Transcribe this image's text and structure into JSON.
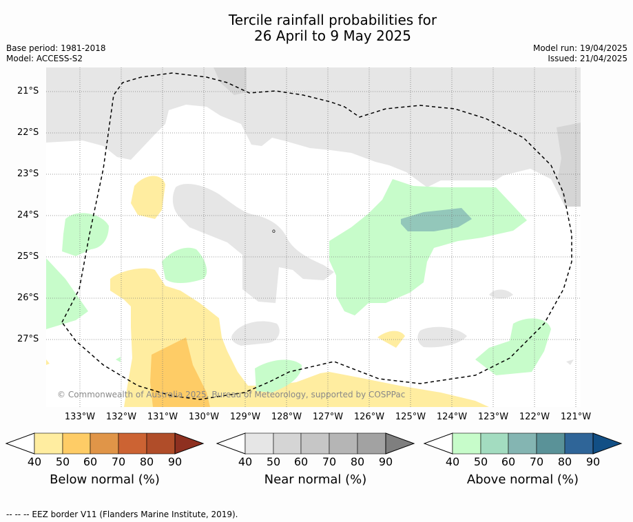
{
  "title": {
    "line1": "Tercile rainfall probabilities for",
    "line2": "26 April to 9 May 2025"
  },
  "meta": {
    "base_period": "Base period: 1981-2018",
    "model": "Model: ACCESS-S2",
    "model_run": "Model run: 19/04/2025",
    "issued": "Issued: 21/04/2025"
  },
  "map": {
    "lat_labels": [
      "21°S",
      "22°S",
      "23°S",
      "24°S",
      "25°S",
      "26°S",
      "27°S"
    ],
    "lon_labels": [
      "133°W",
      "132°W",
      "131°W",
      "130°W",
      "129°W",
      "128°W",
      "127°W",
      "126°W",
      "125°W",
      "124°W",
      "123°W",
      "122°W",
      "121°W"
    ],
    "copyright": "© Commonwealth of Australia 2025, Bureau of Meteorology, supported by COSPPac",
    "eez_label": "-- -- -- EEZ border V11 (Flanders Marine Institute, 2019).",
    "colors": {
      "below_40": "#ffeda0",
      "below_50": "#fecc66",
      "near_40": "#e6e6e6",
      "near_50": "#d5d5d5",
      "above_40": "#c7fcca",
      "above_50": "#a3dcc0",
      "above_60": "#84b5b2"
    }
  },
  "colorbars": [
    {
      "title": "Below normal (%)",
      "ticks": [
        "40",
        "50",
        "60",
        "70",
        "80",
        "90"
      ],
      "colors": [
        "#ffeda0",
        "#fecc66",
        "#e09548",
        "#cc6333",
        "#b04d29",
        "#8e3020"
      ]
    },
    {
      "title": "Near normal (%)",
      "ticks": [
        "40",
        "50",
        "60",
        "70",
        "80",
        "90"
      ],
      "colors": [
        "#e6e6e6",
        "#d5d5d5",
        "#c6c6c6",
        "#b5b5b5",
        "#a2a2a2",
        "#7f7f7f"
      ]
    },
    {
      "title": "Above normal (%)",
      "ticks": [
        "40",
        "50",
        "60",
        "70",
        "80",
        "90"
      ],
      "colors": [
        "#c7fcca",
        "#a3dcc0",
        "#84b5b2",
        "#5a9298",
        "#2f6598",
        "#124f85"
      ]
    }
  ]
}
